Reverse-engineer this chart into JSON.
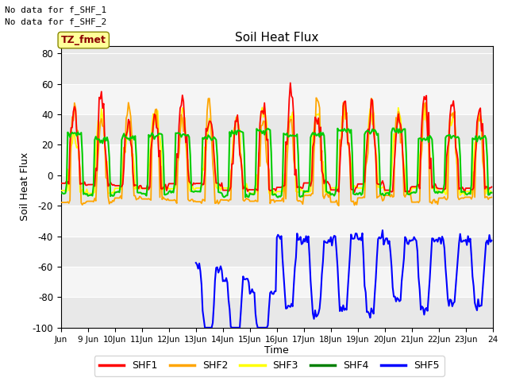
{
  "title": "Soil Heat Flux",
  "xlabel": "Time",
  "ylabel": "Soil Heat Flux",
  "ylim": [
    -100,
    85
  ],
  "yticks": [
    -100,
    -80,
    -60,
    -40,
    -20,
    0,
    20,
    40,
    60,
    80
  ],
  "xlim_hours": [
    0,
    384
  ],
  "legend_labels": [
    "SHF1",
    "SHF2",
    "SHF3",
    "SHF4",
    "SHF5"
  ],
  "legend_colors": [
    "red",
    "orange",
    "yellow",
    "green",
    "blue"
  ],
  "no_data_text": [
    "No data for f_SHF_1",
    "No data for f_SHF_2"
  ],
  "annotation_text": "TZ_fmet",
  "annotation_color": "#8B0000",
  "annotation_bg": "#FFFF99",
  "bg_color": "#E8E8E8",
  "bg_band_color": "#F5F5F5",
  "grid_color": "white",
  "shf1_color": "red",
  "shf2_color": "orange",
  "shf3_color": "yellow",
  "shf4_color": "#00CC00",
  "shf5_color": "blue",
  "n_days": 16,
  "hours_per_day": 24
}
